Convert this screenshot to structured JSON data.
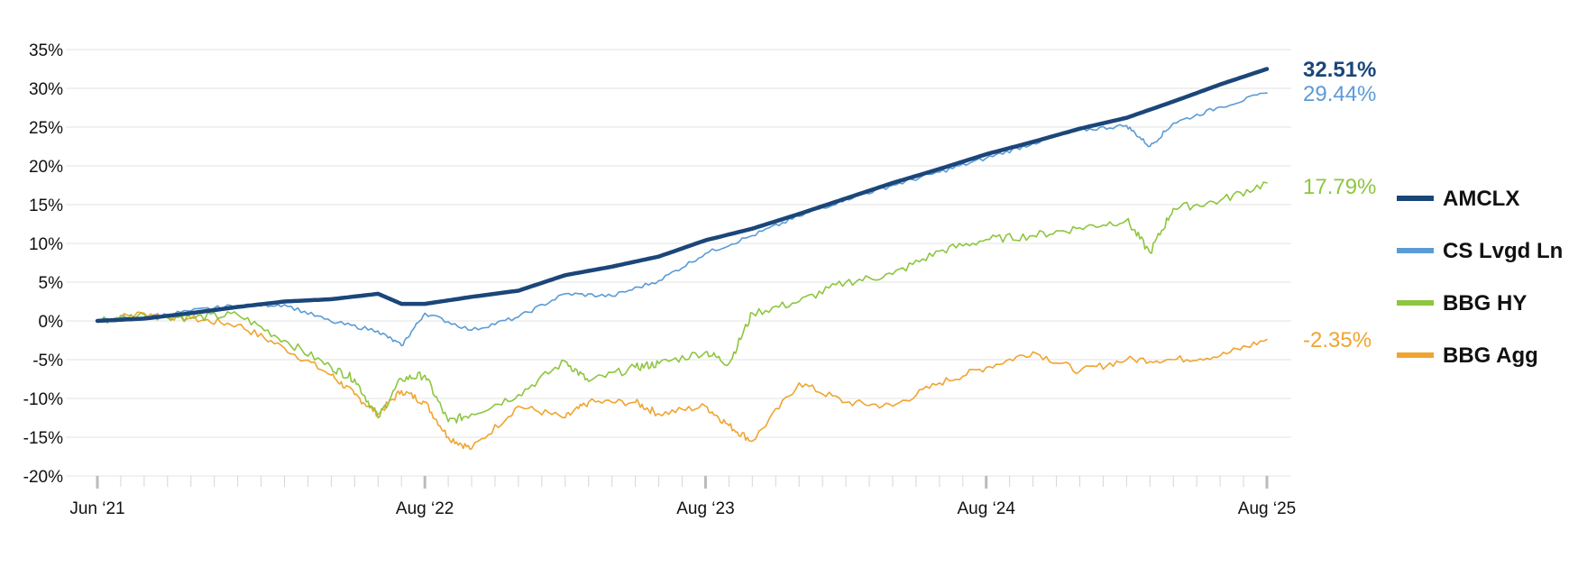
{
  "chart_data": {
    "type": "line",
    "title": "",
    "xlabel": "",
    "ylabel": "",
    "ylim": [
      -20,
      35
    ],
    "y_ticks": [
      35,
      30,
      25,
      20,
      15,
      10,
      5,
      0,
      -5,
      -10,
      -15,
      -20
    ],
    "y_tick_labels": [
      "35%",
      "30%",
      "25%",
      "20%",
      "15%",
      "10%",
      "5%",
      "0%",
      "-5%",
      "-10%",
      "-15%",
      "-20%"
    ],
    "x_range": [
      "2021-06",
      "2025-08"
    ],
    "x_ticks": [
      {
        "date": "2021-06",
        "label": "Jun ‘21"
      },
      {
        "date": "2022-08",
        "label": "Aug ‘22"
      },
      {
        "date": "2023-08",
        "label": "Aug ‘23"
      },
      {
        "date": "2024-08",
        "label": "Aug ‘24"
      },
      {
        "date": "2025-08",
        "label": "Aug ‘25"
      }
    ],
    "grid": "horizontal",
    "legend_position": "right",
    "series": [
      {
        "name": "AMCLX",
        "color": "#1b4679",
        "end_label": "32.51%",
        "end_bold": true,
        "x": [
          "2021-06",
          "2021-08",
          "2021-10",
          "2021-12",
          "2022-02",
          "2022-04",
          "2022-06",
          "2022-07",
          "2022-08",
          "2022-10",
          "2022-12",
          "2023-02",
          "2023-04",
          "2023-06",
          "2023-08",
          "2023-10",
          "2023-12",
          "2024-02",
          "2024-04",
          "2024-06",
          "2024-08",
          "2024-10",
          "2024-12",
          "2025-02",
          "2025-04",
          "2025-06",
          "2025-08"
        ],
        "values": [
          0.0,
          0.3,
          1.0,
          1.8,
          2.5,
          2.8,
          3.5,
          2.2,
          2.2,
          3.1,
          3.9,
          5.9,
          7.0,
          8.3,
          10.4,
          11.9,
          13.8,
          15.8,
          17.8,
          19.6,
          21.5,
          23.1,
          24.8,
          26.2,
          28.3,
          30.5,
          32.5
        ]
      },
      {
        "name": "CS Lvgd Ln",
        "color": "#5b9bd5",
        "end_label": "29.44%",
        "end_bold": false,
        "x": [
          "2021-06",
          "2021-08",
          "2021-10",
          "2021-12",
          "2022-02",
          "2022-04",
          "2022-06",
          "2022-07",
          "2022-08",
          "2022-10",
          "2022-12",
          "2023-02",
          "2023-04",
          "2023-06",
          "2023-08",
          "2023-10",
          "2023-12",
          "2024-02",
          "2024-04",
          "2024-06",
          "2024-08",
          "2024-10",
          "2024-12",
          "2025-02",
          "2025-03",
          "2025-04",
          "2025-06",
          "2025-08"
        ],
        "values": [
          0.0,
          0.4,
          1.3,
          2.0,
          2.1,
          -0.1,
          -1.3,
          -3.2,
          1.0,
          -1.2,
          0.5,
          3.5,
          3.2,
          5.2,
          8.7,
          11.0,
          13.5,
          15.7,
          17.5,
          19.2,
          21.0,
          22.9,
          24.6,
          25.2,
          22.5,
          25.5,
          27.6,
          29.4
        ]
      },
      {
        "name": "BBG HY",
        "color": "#8dc63f",
        "end_label": "17.79%",
        "end_bold": false,
        "x": [
          "2021-06",
          "2021-08",
          "2021-10",
          "2021-12",
          "2022-02",
          "2022-04",
          "2022-05",
          "2022-06",
          "2022-07",
          "2022-08",
          "2022-09",
          "2022-10",
          "2022-12",
          "2023-02",
          "2023-03",
          "2023-05",
          "2023-06",
          "2023-08",
          "2023-09",
          "2023-10",
          "2023-12",
          "2024-02",
          "2024-04",
          "2024-06",
          "2024-08",
          "2024-10",
          "2024-12",
          "2025-02",
          "2025-03",
          "2025-04",
          "2025-06",
          "2025-08"
        ],
        "values": [
          0.0,
          0.8,
          0.4,
          0.8,
          -2.5,
          -6.0,
          -7.5,
          -12.5,
          -7.5,
          -7.0,
          -13.0,
          -12.0,
          -9.5,
          -5.2,
          -7.8,
          -6.0,
          -5.5,
          -4.0,
          -5.5,
          1.0,
          2.5,
          5.0,
          6.0,
          9.0,
          10.5,
          11.0,
          12.0,
          13.0,
          8.8,
          14.5,
          15.5,
          17.8
        ]
      },
      {
        "name": "BBG Agg",
        "color": "#f0a430",
        "end_label": "-2.35%",
        "end_bold": false,
        "x": [
          "2021-06",
          "2021-08",
          "2021-10",
          "2021-12",
          "2022-02",
          "2022-04",
          "2022-05",
          "2022-06",
          "2022-07",
          "2022-08",
          "2022-09",
          "2022-10",
          "2022-12",
          "2023-02",
          "2023-03",
          "2023-05",
          "2023-06",
          "2023-08",
          "2023-09",
          "2023-10",
          "2023-12",
          "2024-02",
          "2024-04",
          "2024-06",
          "2024-08",
          "2024-10",
          "2024-12",
          "2025-02",
          "2025-04",
          "2025-06",
          "2025-08"
        ],
        "values": [
          0.0,
          1.0,
          0.3,
          -0.5,
          -3.5,
          -7.0,
          -9.5,
          -12.0,
          -9.0,
          -10.5,
          -15.0,
          -16.5,
          -11.0,
          -12.5,
          -10.5,
          -10.5,
          -12.0,
          -11.0,
          -13.5,
          -15.5,
          -8.0,
          -10.5,
          -11.0,
          -8.0,
          -6.0,
          -4.0,
          -6.5,
          -5.0,
          -5.0,
          -4.5,
          -2.4
        ]
      }
    ]
  }
}
